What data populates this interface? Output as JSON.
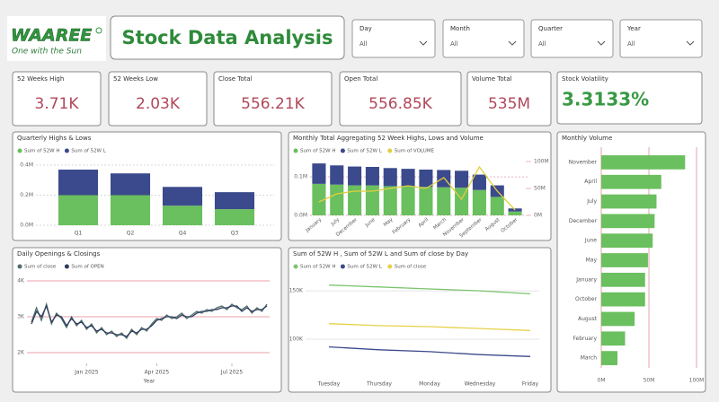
{
  "header": {
    "logo": "WAAREE",
    "tagline": "One with the Sun",
    "title": "Stock Data Analysis"
  },
  "slicers": [
    {
      "label": "Day",
      "value": "All"
    },
    {
      "label": "Month",
      "value": "All"
    },
    {
      "label": "Quarter",
      "value": "All"
    },
    {
      "label": "Year",
      "value": "All"
    }
  ],
  "kpis": [
    {
      "label": "52 Weeks High",
      "value": "3.71K"
    },
    {
      "label": "52 Weeks Low",
      "value": "2.03K"
    },
    {
      "label": "Close Total",
      "value": "556.21K"
    },
    {
      "label": "Open Total",
      "value": "556.85K"
    },
    {
      "label": "Volume Total",
      "value": "535M"
    },
    {
      "label": "Stock Volatility",
      "value": "3.3133%"
    }
  ],
  "chart_data": [
    {
      "type": "bar",
      "stacked": true,
      "title": "Quarterly Highs & Lows",
      "categories": [
        "Q1",
        "Q2",
        "Q4",
        "Q3"
      ],
      "series": [
        {
          "name": "Sum of 52W H",
          "color": "#6abf5e",
          "values": [
            200000,
            200000,
            130000,
            107000
          ]
        },
        {
          "name": "Sum of 52W L",
          "color": "#3b4a8c",
          "values": [
            170000,
            145000,
            125000,
            113000
          ]
        }
      ],
      "ylim": [
        0,
        400000
      ],
      "yticks": [
        {
          "value": 0,
          "label": "0.0M"
        },
        {
          "value": 200000,
          "label": "0.2M"
        },
        {
          "value": 400000,
          "label": "0.4M"
        }
      ],
      "grid": true,
      "grid_color": "#d8d8d8"
    },
    {
      "type": "bar",
      "stacked": true,
      "title": "Monthly Total Aggregating 52 Week Highs, Lows and Volume",
      "categories": [
        "January",
        "July",
        "December",
        "June",
        "May",
        "February",
        "April",
        "March",
        "November",
        "September",
        "August",
        "October"
      ],
      "series": [
        {
          "name": "Sum of 52W H",
          "color": "#6abf5e",
          "values": [
            82000,
            80000,
            78000,
            78000,
            76000,
            75000,
            74000,
            73000,
            72000,
            66000,
            48000,
            10000
          ]
        },
        {
          "name": "Sum of 52W L",
          "color": "#3b4a8c",
          "values": [
            53000,
            50000,
            49000,
            48000,
            47000,
            46000,
            45000,
            45000,
            44000,
            40000,
            30000,
            8000
          ]
        },
        {
          "name": "Sum of VOLUME",
          "color": "#e2cf3f",
          "axis": "y2",
          "values": [
            25000000,
            40000000,
            45000000,
            45000000,
            50000000,
            55000000,
            50000000,
            70000000,
            30000000,
            90000000,
            45000000,
            10000000
          ]
        }
      ],
      "ylim": [
        0,
        140000
      ],
      "yticks": [
        {
          "value": 0,
          "label": "0.0M"
        },
        {
          "value": 100000,
          "label": "0.1M"
        }
      ],
      "y2lim": [
        0,
        100000000
      ],
      "y2ticks": [
        {
          "value": 0,
          "label": "0M"
        },
        {
          "value": 50000000,
          "label": "50M"
        },
        {
          "value": 100000000,
          "label": "100M"
        }
      ],
      "grid": true,
      "grid_color": "#e8b4bc"
    },
    {
      "type": "bar",
      "orientation": "horizontal",
      "title": "Monthly Volume",
      "categories": [
        "November",
        "April",
        "July",
        "December",
        "June",
        "May",
        "January",
        "October",
        "August",
        "February",
        "March"
      ],
      "values": [
        88000000,
        63000000,
        58000000,
        56000000,
        54000000,
        49000000,
        46000000,
        46000000,
        35000000,
        25000000,
        17000000
      ],
      "color": "#6abf5e",
      "xlim": [
        0,
        100000000
      ],
      "xticks": [
        {
          "value": 0,
          "label": "0M"
        },
        {
          "value": 50000000,
          "label": "50M"
        },
        {
          "value": 100000000,
          "label": "100M"
        }
      ],
      "grid": true,
      "grid_color": "#e8a0a8"
    },
    {
      "type": "line",
      "title": "Daily Openings & Closings",
      "xlabel": "Year",
      "series": [
        {
          "name": "Sum of close",
          "color": "#4f6e6e",
          "values": [
            2850,
            3250,
            2900,
            3350,
            2800,
            3100,
            2950,
            2700,
            3000,
            2750,
            2900,
            2650,
            2800,
            2550,
            2700,
            2500,
            2600,
            2450,
            2550,
            2400,
            2650,
            2500,
            2700,
            2600,
            2800,
            2950,
            2900,
            3050,
            2950,
            3000,
            3100,
            2950,
            3050,
            3150,
            3100,
            3200,
            3150,
            3250,
            3300,
            3200,
            3350,
            3250,
            3200,
            3300,
            3100,
            3250,
            3150,
            3350
          ]
        },
        {
          "name": "Sum of OPEN",
          "color": "#2e3e5c",
          "values": [
            2800,
            3150,
            3000,
            3300,
            2850,
            3050,
            3000,
            2750,
            2950,
            2800,
            2850,
            2700,
            2750,
            2600,
            2650,
            2550,
            2550,
            2500,
            2500,
            2450,
            2600,
            2550,
            2650,
            2650,
            2750,
            2900,
            2950,
            3000,
            3000,
            2950,
            3050,
            3000,
            3000,
            3100,
            3150,
            3150,
            3200,
            3200,
            3250,
            3250,
            3300,
            3300,
            3150,
            3250,
            3150,
            3200,
            3200,
            3300
          ]
        }
      ],
      "xlim": [
        0,
        47
      ],
      "xticks": [
        {
          "value": 11,
          "label": "Jan 2025"
        },
        {
          "value": 25,
          "label": "Apr 2025"
        },
        {
          "value": 40,
          "label": "Jul 2025"
        }
      ],
      "ylim": [
        1700,
        4300
      ],
      "yticks": [
        {
          "value": 2000,
          "label": "2K"
        },
        {
          "value": 3000,
          "label": "3K"
        },
        {
          "value": 4000,
          "label": "4K"
        }
      ],
      "grid": true,
      "grid_color": "#e8a0a8"
    },
    {
      "type": "line",
      "title": "Sum of 52W H , Sum of 52W L and Sum of close by Day",
      "categories": [
        "Tuesday",
        "Thursday",
        "Monday",
        "Wednesday",
        "Friday"
      ],
      "series": [
        {
          "name": "Sum of 52W H",
          "color": "#7cc46e",
          "values": [
            156000,
            154000,
            152000,
            150000,
            147000
          ]
        },
        {
          "name": "Sum of 52W L",
          "color": "#3b4a8c",
          "values": [
            92000,
            89000,
            87000,
            84000,
            82000
          ]
        },
        {
          "name": "Sum of close",
          "color": "#e6d24a",
          "values": [
            116000,
            114000,
            113000,
            111000,
            109000
          ]
        }
      ],
      "ylim": [
        60000,
        165000
      ],
      "yticks": [
        {
          "value": 100000,
          "label": "100K"
        },
        {
          "value": 150000,
          "label": "150K"
        }
      ],
      "grid": true,
      "grid_color": "#e4e4e4"
    }
  ]
}
